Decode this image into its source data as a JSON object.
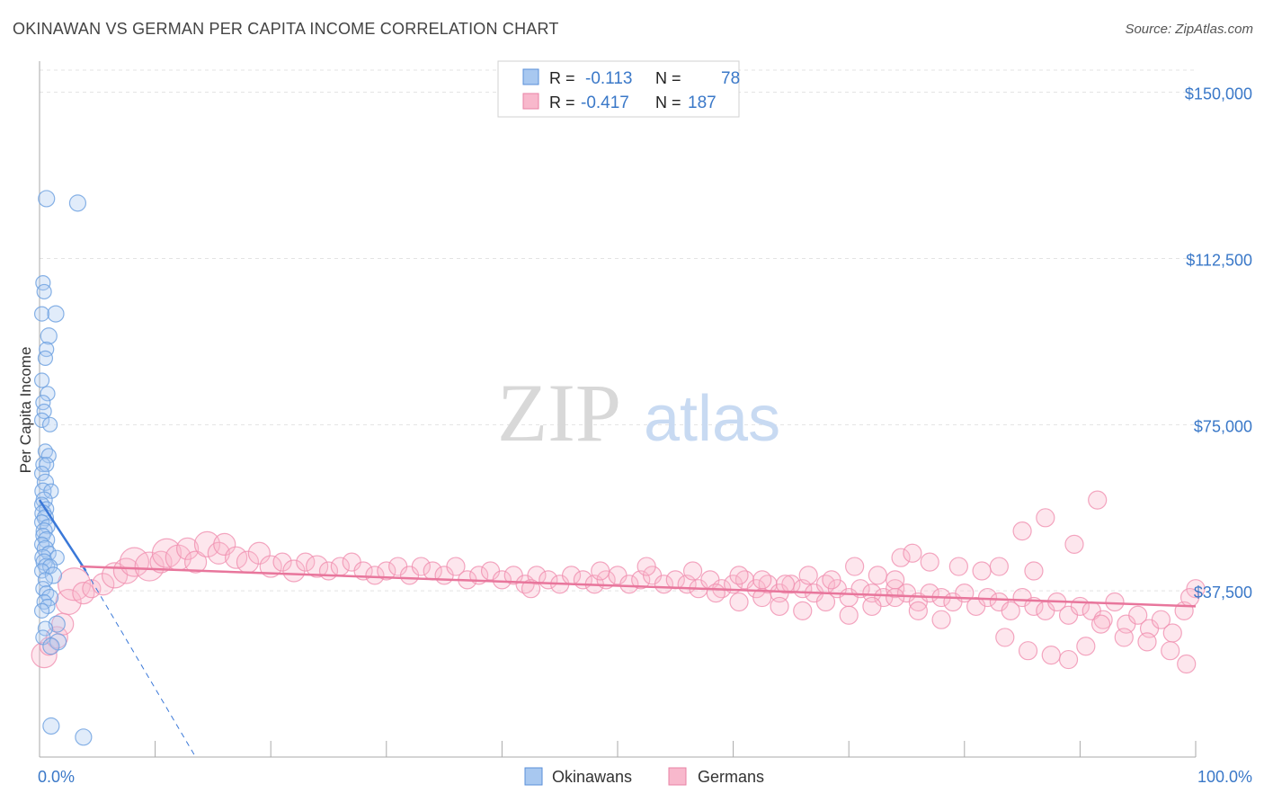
{
  "header": {
    "title": "OKINAWAN VS GERMAN PER CAPITA INCOME CORRELATION CHART",
    "source": "Source: ZipAtlas.com"
  },
  "watermark": {
    "zip": "ZIP",
    "atlas": "atlas"
  },
  "legend_box": {
    "rows": [
      {
        "r_label": "R =",
        "r_value": "-0.113",
        "n_label": "N =",
        "n_value": "78",
        "color": "#a8c8f0",
        "stroke": "#5a8fd8"
      },
      {
        "r_label": "R =",
        "r_value": "-0.417",
        "n_label": "N =",
        "n_value": "187",
        "color": "#f8b8cc",
        "stroke": "#e882a4"
      }
    ]
  },
  "chart_data": {
    "type": "scatter",
    "title": "OKINAWAN VS GERMAN PER CAPITA INCOME CORRELATION CHART",
    "ylabel": "Per Capita Income",
    "xlabel": "",
    "xlim": [
      0,
      100
    ],
    "ylim": [
      0,
      155000
    ],
    "x_tick_labels": [
      {
        "value": 0,
        "label": "0.0%"
      },
      {
        "value": 100,
        "label": "100.0%"
      }
    ],
    "y_tick_labels": [
      {
        "value": 37500,
        "label": "$37,500"
      },
      {
        "value": 75000,
        "label": "$75,000"
      },
      {
        "value": 112500,
        "label": "$112,500"
      },
      {
        "value": 150000,
        "label": "$150,000"
      }
    ],
    "colors": {
      "okinawans": "#6a9fe0",
      "germans": "#f090b0",
      "axis_label": "#3a78c8",
      "blue_line": "#3a78d8",
      "pink_line": "#e8769c"
    },
    "series": [
      {
        "name": "Okinawans",
        "trend": {
          "x1": 0,
          "y1": 58000,
          "x2": 4,
          "y2": 42000,
          "dash_x2": 13.5,
          "dash_y2": 0
        },
        "points": [
          [
            0.6,
            126000,
            9
          ],
          [
            3.3,
            125000,
            9
          ],
          [
            0.3,
            107000,
            8
          ],
          [
            0.4,
            105000,
            8
          ],
          [
            0.2,
            100000,
            8
          ],
          [
            1.4,
            100000,
            9
          ],
          [
            0.8,
            95000,
            9
          ],
          [
            0.6,
            92000,
            8
          ],
          [
            0.5,
            90000,
            8
          ],
          [
            0.2,
            85000,
            8
          ],
          [
            0.7,
            82000,
            8
          ],
          [
            0.3,
            80000,
            8
          ],
          [
            0.4,
            78000,
            8
          ],
          [
            0.2,
            76000,
            8
          ],
          [
            0.9,
            75000,
            8
          ],
          [
            0.5,
            69000,
            8
          ],
          [
            0.8,
            68000,
            8
          ],
          [
            0.3,
            66000,
            8
          ],
          [
            0.6,
            66000,
            8
          ],
          [
            0.2,
            64000,
            8
          ],
          [
            0.5,
            62000,
            9
          ],
          [
            0.3,
            60000,
            9
          ],
          [
            1.0,
            60000,
            8
          ],
          [
            0.4,
            58000,
            9
          ],
          [
            0.2,
            57000,
            8
          ],
          [
            0.6,
            56000,
            8
          ],
          [
            0.3,
            55000,
            9
          ],
          [
            0.5,
            54000,
            9
          ],
          [
            0.2,
            53000,
            8
          ],
          [
            0.7,
            52000,
            8
          ],
          [
            0.4,
            51000,
            9
          ],
          [
            0.3,
            50000,
            8
          ],
          [
            0.6,
            49000,
            9
          ],
          [
            0.2,
            48000,
            8
          ],
          [
            0.5,
            47000,
            9
          ],
          [
            0.8,
            46000,
            8
          ],
          [
            0.3,
            45000,
            9
          ],
          [
            1.5,
            45000,
            8
          ],
          [
            0.4,
            44000,
            9
          ],
          [
            0.6,
            43000,
            9
          ],
          [
            0.9,
            43000,
            8
          ],
          [
            0.2,
            42000,
            8
          ],
          [
            1.2,
            41000,
            9
          ],
          [
            0.5,
            40000,
            8
          ],
          [
            0.3,
            38000,
            8
          ],
          [
            0.6,
            37000,
            8
          ],
          [
            0.9,
            36000,
            9
          ],
          [
            0.4,
            35000,
            8
          ],
          [
            0.7,
            34000,
            8
          ],
          [
            0.2,
            33000,
            8
          ],
          [
            1.5,
            30000,
            9
          ],
          [
            0.5,
            29000,
            8
          ],
          [
            0.3,
            27000,
            8
          ],
          [
            1.6,
            26000,
            9
          ],
          [
            1.0,
            25000,
            9
          ],
          [
            1.0,
            7000,
            9
          ],
          [
            3.8,
            4500,
            9
          ]
        ]
      },
      {
        "name": "Germans",
        "trend": {
          "x1": 3.5,
          "y1": 43000,
          "x2": 100,
          "y2": 34000
        },
        "points": [
          [
            0.4,
            23000,
            14
          ],
          [
            0.8,
            25000,
            10
          ],
          [
            1.5,
            27000,
            12
          ],
          [
            2.0,
            30000,
            12
          ],
          [
            2.5,
            35000,
            14
          ],
          [
            3.0,
            39000,
            18
          ],
          [
            3.8,
            37000,
            12
          ],
          [
            4.5,
            38000,
            10
          ],
          [
            5.5,
            39000,
            12
          ],
          [
            6.5,
            41000,
            14
          ],
          [
            7.5,
            42000,
            14
          ],
          [
            8.2,
            44000,
            16
          ],
          [
            9.5,
            43000,
            16
          ],
          [
            10.5,
            44000,
            12
          ],
          [
            11.0,
            46000,
            16
          ],
          [
            12.0,
            45000,
            14
          ],
          [
            12.8,
            47000,
            12
          ],
          [
            13.5,
            44000,
            12
          ],
          [
            14.5,
            48000,
            14
          ],
          [
            15.5,
            46000,
            12
          ],
          [
            16.0,
            48000,
            12
          ],
          [
            17.0,
            45000,
            12
          ],
          [
            18.0,
            44000,
            12
          ],
          [
            19.0,
            46000,
            12
          ],
          [
            20.0,
            43000,
            12
          ],
          [
            21.0,
            44000,
            10
          ],
          [
            22.0,
            42000,
            12
          ],
          [
            23.0,
            44000,
            10
          ],
          [
            24.0,
            43000,
            12
          ],
          [
            25.0,
            42000,
            10
          ],
          [
            26.0,
            43000,
            10
          ],
          [
            27.0,
            44000,
            10
          ],
          [
            28.0,
            42000,
            10
          ],
          [
            29.0,
            41000,
            10
          ],
          [
            30.0,
            42000,
            10
          ],
          [
            31.0,
            43000,
            10
          ],
          [
            32.0,
            41000,
            10
          ],
          [
            33.0,
            43000,
            10
          ],
          [
            34.0,
            42000,
            10
          ],
          [
            35.0,
            41000,
            10
          ],
          [
            36.0,
            43000,
            10
          ],
          [
            37.0,
            40000,
            10
          ],
          [
            38.0,
            41000,
            10
          ],
          [
            39.0,
            42000,
            10
          ],
          [
            40.0,
            40000,
            10
          ],
          [
            41.0,
            41000,
            10
          ],
          [
            42.0,
            39000,
            10
          ],
          [
            43.0,
            41000,
            10
          ],
          [
            44.0,
            40000,
            10
          ],
          [
            45.0,
            39000,
            10
          ],
          [
            46.0,
            41000,
            10
          ],
          [
            47.0,
            40000,
            10
          ],
          [
            48.0,
            39000,
            10
          ],
          [
            49.0,
            40000,
            10
          ],
          [
            50.0,
            41000,
            10
          ],
          [
            51.0,
            39000,
            10
          ],
          [
            52.0,
            40000,
            10
          ],
          [
            53.0,
            41000,
            10
          ],
          [
            54.0,
            39000,
            10
          ],
          [
            55.0,
            40000,
            10
          ],
          [
            56.0,
            39000,
            10
          ],
          [
            57.0,
            38000,
            10
          ],
          [
            58.0,
            40000,
            10
          ],
          [
            59.0,
            38000,
            10
          ],
          [
            60.0,
            39000,
            10
          ],
          [
            61.0,
            40000,
            10
          ],
          [
            62.0,
            38000,
            10
          ],
          [
            63.0,
            39000,
            10
          ],
          [
            64.0,
            37000,
            10
          ],
          [
            65.0,
            39000,
            10
          ],
          [
            66.0,
            38000,
            10
          ],
          [
            67.0,
            37000,
            10
          ],
          [
            68.0,
            39000,
            10
          ],
          [
            69.0,
            38000,
            10
          ],
          [
            70.0,
            36000,
            10
          ],
          [
            71.0,
            38000,
            10
          ],
          [
            72.0,
            37000,
            10
          ],
          [
            73.0,
            36000,
            10
          ],
          [
            74.0,
            38000,
            10
          ],
          [
            75.0,
            37000,
            10
          ],
          [
            76.0,
            35000,
            10
          ],
          [
            77.0,
            37000,
            10
          ],
          [
            78.0,
            36000,
            10
          ],
          [
            79.0,
            35000,
            10
          ],
          [
            80.0,
            37000,
            10
          ],
          [
            81.0,
            34000,
            10
          ],
          [
            82.0,
            36000,
            10
          ],
          [
            83.0,
            35000,
            10
          ],
          [
            84.0,
            33000,
            10
          ],
          [
            85.0,
            36000,
            10
          ],
          [
            86.0,
            34000,
            10
          ],
          [
            87.0,
            33000,
            10
          ],
          [
            88.0,
            35000,
            10
          ],
          [
            89.0,
            32000,
            10
          ],
          [
            90.0,
            34000,
            10
          ],
          [
            91.0,
            33000,
            10
          ],
          [
            92.0,
            31000,
            10
          ],
          [
            93.0,
            35000,
            10
          ],
          [
            94.0,
            30000,
            10
          ],
          [
            95.0,
            32000,
            10
          ],
          [
            96.0,
            29000,
            10
          ],
          [
            97.0,
            31000,
            10
          ],
          [
            98.0,
            28000,
            10
          ],
          [
            99.0,
            33000,
            10
          ],
          [
            74.5,
            45000,
            10
          ],
          [
            75.5,
            46000,
            10
          ],
          [
            77.0,
            44000,
            10
          ],
          [
            79.5,
            43000,
            10
          ],
          [
            81.5,
            42000,
            10
          ],
          [
            83.0,
            43000,
            10
          ],
          [
            86.0,
            42000,
            10
          ],
          [
            85.0,
            51000,
            10
          ],
          [
            87.0,
            54000,
            10
          ],
          [
            89.5,
            48000,
            10
          ],
          [
            91.5,
            58000,
            10
          ],
          [
            83.5,
            27000,
            10
          ],
          [
            85.5,
            24000,
            10
          ],
          [
            87.5,
            23000,
            10
          ],
          [
            89.0,
            22000,
            10
          ],
          [
            90.5,
            25000,
            10
          ],
          [
            91.8,
            30000,
            10
          ],
          [
            93.8,
            27000,
            10
          ],
          [
            95.8,
            26000,
            10
          ],
          [
            97.8,
            24000,
            10
          ],
          [
            99.2,
            21000,
            10
          ],
          [
            100.0,
            38000,
            10
          ],
          [
            99.5,
            36000,
            10
          ],
          [
            42.5,
            38000,
            10
          ],
          [
            48.5,
            42000,
            10
          ],
          [
            52.5,
            43000,
            10
          ],
          [
            56.5,
            42000,
            10
          ],
          [
            60.5,
            41000,
            10
          ],
          [
            62.5,
            40000,
            10
          ],
          [
            64.5,
            39000,
            10
          ],
          [
            66.5,
            41000,
            10
          ],
          [
            68.5,
            40000,
            10
          ],
          [
            70.5,
            43000,
            10
          ],
          [
            72.5,
            41000,
            10
          ],
          [
            74.0,
            40000,
            10
          ],
          [
            58.5,
            37000,
            10
          ],
          [
            60.5,
            35000,
            10
          ],
          [
            62.5,
            36000,
            10
          ],
          [
            64.0,
            34000,
            10
          ],
          [
            66.0,
            33000,
            10
          ],
          [
            68.0,
            35000,
            10
          ],
          [
            70.0,
            32000,
            10
          ],
          [
            72.0,
            34000,
            10
          ],
          [
            74.0,
            36000,
            10
          ],
          [
            76.0,
            33000,
            10
          ],
          [
            78.0,
            31000,
            10
          ]
        ]
      }
    ],
    "legend": [
      "Okinawans",
      "Germans"
    ]
  }
}
